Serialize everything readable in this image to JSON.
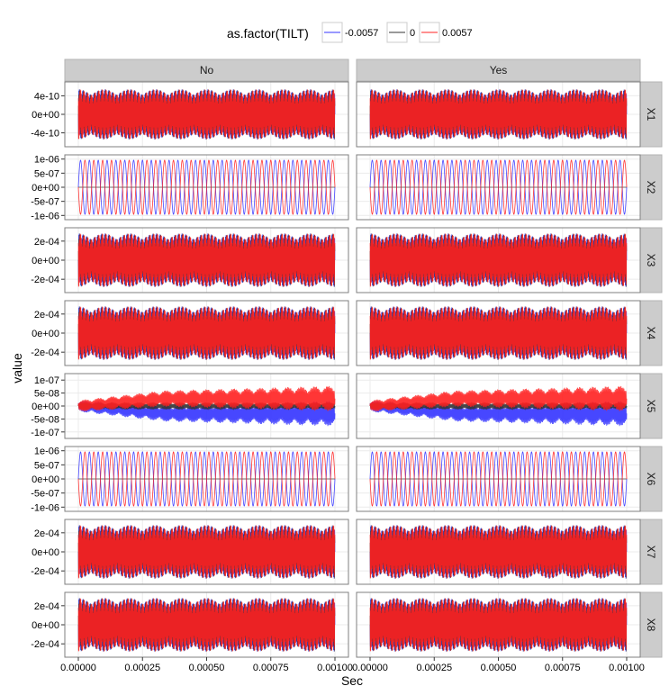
{
  "chart_data": {
    "type": "line",
    "xlabel": "Sec",
    "ylabel": "value",
    "legend": {
      "title": "as.factor(TILT)",
      "position": "top",
      "entries": [
        "-0.0057",
        "0",
        "0.0057"
      ]
    },
    "series_colors": [
      "#3333ff",
      "#333333",
      "#ff2020"
    ],
    "facet_columns": [
      "No",
      "Yes"
    ],
    "facet_rows": [
      "X1",
      "X2",
      "X3",
      "X4",
      "X5",
      "X6",
      "X7",
      "X8"
    ],
    "x_ticks": [
      "0.00000",
      "0.00025",
      "0.00050",
      "0.00075",
      "0.00100"
    ],
    "x_tick_values": [
      0,
      0.00025,
      0.0005,
      0.00075,
      0.001
    ],
    "xlim": [
      0,
      0.001
    ],
    "grid": true,
    "panels": [
      {
        "row": "X1",
        "ylim": [
          -7e-10,
          7e-10
        ],
        "y_ticks": [
          "4e-10",
          "0e+00",
          "-4e-10"
        ],
        "y_tick_values": [
          4e-10,
          0,
          -4e-10
        ],
        "pattern": "dense",
        "amplitude": 5.4e-10,
        "beat": 0.1
      },
      {
        "row": "X2",
        "ylim": [
          -1.15e-06,
          1.15e-06
        ],
        "y_ticks": [
          "1e-06",
          "5e-07",
          "0e+00",
          "-5e-07",
          "-1e-06"
        ],
        "y_tick_values": [
          1e-06,
          5e-07,
          0,
          -5e-07,
          -1e-06
        ],
        "pattern": "sine",
        "amplitude": 9.6e-07,
        "cycles": 29
      },
      {
        "row": "X3",
        "ylim": [
          -0.00034,
          0.00034
        ],
        "y_ticks": [
          "2e-04",
          "0e+00",
          "-2e-04"
        ],
        "y_tick_values": [
          0.0002,
          0,
          -0.0002
        ],
        "pattern": "dense",
        "amplitude": 0.00028,
        "beat": 0.1
      },
      {
        "row": "X4",
        "ylim": [
          -0.00034,
          0.00034
        ],
        "y_ticks": [
          "2e-04",
          "0e+00",
          "-2e-04"
        ],
        "y_tick_values": [
          0.0002,
          0,
          -0.0002
        ],
        "pattern": "dense",
        "amplitude": 0.00028,
        "beat": 0.1
      },
      {
        "row": "X5",
        "ylim": [
          -1.25e-07,
          1.25e-07
        ],
        "y_ticks": [
          "1e-07",
          "5e-08",
          "0e+00",
          "-5e-08",
          "-1e-07"
        ],
        "y_tick_values": [
          1e-07,
          5e-08,
          0,
          -5e-08,
          -1e-07
        ],
        "pattern": "split",
        "amplitude": 9e-08
      },
      {
        "row": "X6",
        "ylim": [
          -1.15e-06,
          1.15e-06
        ],
        "y_ticks": [
          "1e-06",
          "5e-07",
          "0e+00",
          "-5e-07",
          "-1e-06"
        ],
        "y_tick_values": [
          1e-06,
          5e-07,
          0,
          -5e-07,
          -1e-06
        ],
        "pattern": "sine",
        "amplitude": 9.6e-07,
        "cycles": 29
      },
      {
        "row": "X7",
        "ylim": [
          -0.00034,
          0.00034
        ],
        "y_ticks": [
          "2e-04",
          "0e+00",
          "-2e-04"
        ],
        "y_tick_values": [
          0.0002,
          0,
          -0.0002
        ],
        "pattern": "dense",
        "amplitude": 0.00028,
        "beat": 0.1
      },
      {
        "row": "X8",
        "ylim": [
          -0.00034,
          0.00034
        ],
        "y_ticks": [
          "2e-04",
          "0e+00",
          "-2e-04"
        ],
        "y_tick_values": [
          0.0002,
          0,
          -0.0002
        ],
        "pattern": "dense",
        "amplitude": 0.00028,
        "beat": 0.1
      }
    ]
  }
}
